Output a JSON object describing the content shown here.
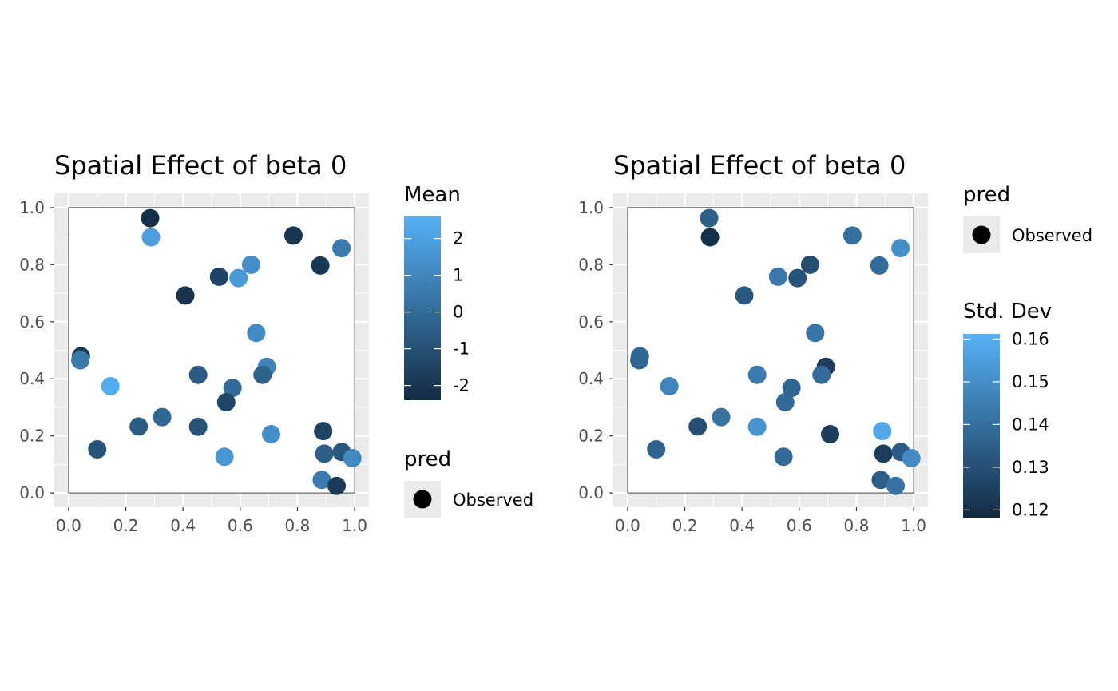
{
  "chart_data": [
    {
      "type": "scatter",
      "title": "Spatial Effect of beta 0",
      "xlabel": "",
      "ylabel": "",
      "xlim": [
        -0.05,
        1.05
      ],
      "ylim": [
        -0.05,
        1.05
      ],
      "x_ticks": [
        "0.0",
        "0.2",
        "0.4",
        "0.6",
        "0.8",
        "1.0"
      ],
      "y_ticks": [
        "0.0",
        "0.2",
        "0.4",
        "0.6",
        "0.8",
        "1.0"
      ],
      "grid": true,
      "background": "#ebebeb",
      "domain_box": [
        [
          0,
          0
        ],
        [
          1,
          0
        ],
        [
          1,
          1
        ],
        [
          0,
          1
        ]
      ],
      "color_legend": {
        "title": "Mean",
        "type": "gradient",
        "min": -2.4,
        "max": 2.6,
        "low_color": "#132b43",
        "high_color": "#56b1f7",
        "breaks": [
          2,
          1,
          0,
          -1,
          -2
        ],
        "labels": [
          "2",
          "1",
          "0",
          "-1",
          "-2"
        ]
      },
      "shape_legend": {
        "title": "pred",
        "entries": [
          "Observed"
        ]
      },
      "points": [
        {
          "x": 0.285,
          "y": 0.963,
          "value": -2.2
        },
        {
          "x": 0.288,
          "y": 0.896,
          "value": 1.9
        },
        {
          "x": 0.786,
          "y": 0.902,
          "value": -2.0
        },
        {
          "x": 0.954,
          "y": 0.858,
          "value": 0.6
        },
        {
          "x": 0.88,
          "y": 0.797,
          "value": -1.9
        },
        {
          "x": 0.638,
          "y": 0.8,
          "value": 1.3
        },
        {
          "x": 0.526,
          "y": 0.758,
          "value": -1.5
        },
        {
          "x": 0.594,
          "y": 0.753,
          "value": 1.7
        },
        {
          "x": 0.408,
          "y": 0.692,
          "value": -2.1
        },
        {
          "x": 0.656,
          "y": 0.561,
          "value": 1.2
        },
        {
          "x": 0.043,
          "y": 0.479,
          "value": -1.8
        },
        {
          "x": 0.041,
          "y": 0.465,
          "value": 0.5
        },
        {
          "x": 0.693,
          "y": 0.442,
          "value": 0.9
        },
        {
          "x": 0.678,
          "y": 0.414,
          "value": -0.4
        },
        {
          "x": 0.453,
          "y": 0.414,
          "value": -0.6
        },
        {
          "x": 0.573,
          "y": 0.368,
          "value": -0.1
        },
        {
          "x": 0.146,
          "y": 0.374,
          "value": 2.4
        },
        {
          "x": 0.551,
          "y": 0.318,
          "value": -1.4
        },
        {
          "x": 0.327,
          "y": 0.266,
          "value": -0.2
        },
        {
          "x": 0.245,
          "y": 0.233,
          "value": -0.6
        },
        {
          "x": 0.453,
          "y": 0.232,
          "value": -0.9
        },
        {
          "x": 0.708,
          "y": 0.206,
          "value": 1.3
        },
        {
          "x": 0.89,
          "y": 0.217,
          "value": -1.5
        },
        {
          "x": 0.1,
          "y": 0.153,
          "value": -0.9
        },
        {
          "x": 0.545,
          "y": 0.127,
          "value": 1.6
        },
        {
          "x": 0.894,
          "y": 0.138,
          "value": -0.5
        },
        {
          "x": 0.955,
          "y": 0.144,
          "value": -0.8
        },
        {
          "x": 0.992,
          "y": 0.122,
          "value": 1.1
        },
        {
          "x": 0.885,
          "y": 0.046,
          "value": 0.6
        },
        {
          "x": 0.937,
          "y": 0.025,
          "value": -1.8
        }
      ]
    },
    {
      "type": "scatter",
      "title": "Spatial Effect of beta 0",
      "xlabel": "",
      "ylabel": "",
      "xlim": [
        -0.05,
        1.05
      ],
      "ylim": [
        -0.05,
        1.05
      ],
      "x_ticks": [
        "0.0",
        "0.2",
        "0.4",
        "0.6",
        "0.8",
        "1.0"
      ],
      "y_ticks": [
        "0.0",
        "0.2",
        "0.4",
        "0.6",
        "0.8",
        "1.0"
      ],
      "grid": true,
      "background": "#ebebeb",
      "domain_box": [
        [
          0,
          0
        ],
        [
          1,
          0
        ],
        [
          1,
          1
        ],
        [
          0,
          1
        ]
      ],
      "shape_legend": {
        "title": "pred",
        "entries": [
          "Observed"
        ]
      },
      "color_legend": {
        "title": "Std. Dev",
        "type": "gradient",
        "min": 0.1182,
        "max": 0.1612,
        "low_color": "#132b43",
        "high_color": "#56b1f7",
        "breaks": [
          0.16,
          0.15,
          0.14,
          0.13,
          0.12
        ],
        "labels": [
          "0.16",
          "0.15",
          "0.14",
          "0.13",
          "0.12"
        ]
      },
      "points": [
        {
          "x": 0.285,
          "y": 0.963,
          "value": 0.135
        },
        {
          "x": 0.288,
          "y": 0.896,
          "value": 0.12
        },
        {
          "x": 0.786,
          "y": 0.902,
          "value": 0.14
        },
        {
          "x": 0.954,
          "y": 0.858,
          "value": 0.15
        },
        {
          "x": 0.88,
          "y": 0.797,
          "value": 0.139
        },
        {
          "x": 0.638,
          "y": 0.8,
          "value": 0.129
        },
        {
          "x": 0.526,
          "y": 0.758,
          "value": 0.143
        },
        {
          "x": 0.594,
          "y": 0.753,
          "value": 0.131
        },
        {
          "x": 0.408,
          "y": 0.692,
          "value": 0.133
        },
        {
          "x": 0.656,
          "y": 0.561,
          "value": 0.142
        },
        {
          "x": 0.043,
          "y": 0.479,
          "value": 0.138
        },
        {
          "x": 0.041,
          "y": 0.465,
          "value": 0.137
        },
        {
          "x": 0.693,
          "y": 0.442,
          "value": 0.124
        },
        {
          "x": 0.678,
          "y": 0.414,
          "value": 0.139
        },
        {
          "x": 0.453,
          "y": 0.414,
          "value": 0.144
        },
        {
          "x": 0.573,
          "y": 0.368,
          "value": 0.137
        },
        {
          "x": 0.146,
          "y": 0.374,
          "value": 0.147
        },
        {
          "x": 0.551,
          "y": 0.318,
          "value": 0.138
        },
        {
          "x": 0.327,
          "y": 0.266,
          "value": 0.141
        },
        {
          "x": 0.245,
          "y": 0.233,
          "value": 0.13
        },
        {
          "x": 0.453,
          "y": 0.232,
          "value": 0.152
        },
        {
          "x": 0.708,
          "y": 0.206,
          "value": 0.124
        },
        {
          "x": 0.89,
          "y": 0.217,
          "value": 0.158
        },
        {
          "x": 0.1,
          "y": 0.153,
          "value": 0.136
        },
        {
          "x": 0.545,
          "y": 0.127,
          "value": 0.138
        },
        {
          "x": 0.894,
          "y": 0.138,
          "value": 0.124
        },
        {
          "x": 0.955,
          "y": 0.144,
          "value": 0.134
        },
        {
          "x": 0.992,
          "y": 0.122,
          "value": 0.149
        },
        {
          "x": 0.885,
          "y": 0.046,
          "value": 0.135
        },
        {
          "x": 0.937,
          "y": 0.025,
          "value": 0.141
        }
      ]
    }
  ]
}
